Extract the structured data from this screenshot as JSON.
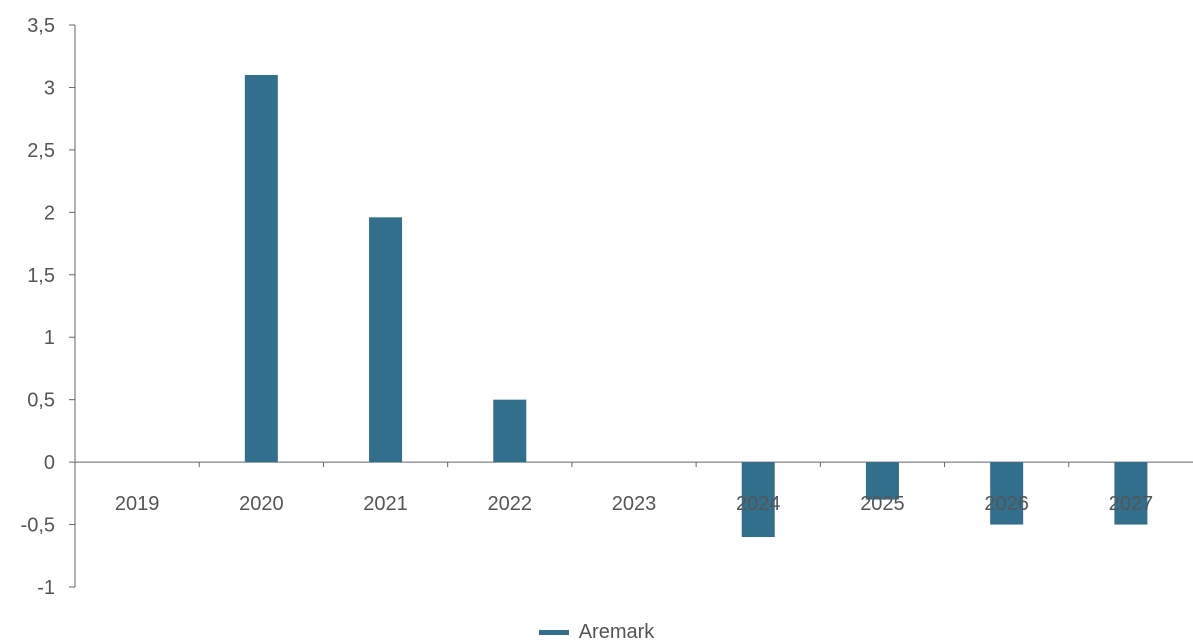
{
  "chart_data": {
    "type": "bar",
    "categories": [
      "2019",
      "2020",
      "2021",
      "2022",
      "2023",
      "2024",
      "2025",
      "2026",
      "2027"
    ],
    "series": [
      {
        "name": "Aremark",
        "values": [
          0,
          3.1,
          1.96,
          0.5,
          0,
          -0.6,
          -0.3,
          -0.5,
          -0.5
        ],
        "color": "#326f8d"
      }
    ],
    "y_ticks": [
      "3,5",
      "3",
      "2,5",
      "2",
      "1,5",
      "1",
      "0,5",
      "0",
      "-0,5",
      "-1"
    ],
    "ylim": [
      -1,
      3.5
    ],
    "title": "",
    "xlabel": "",
    "ylabel": "",
    "grid": false,
    "legend_position": "bottom-center"
  },
  "legend": {
    "label": "Aremark"
  }
}
